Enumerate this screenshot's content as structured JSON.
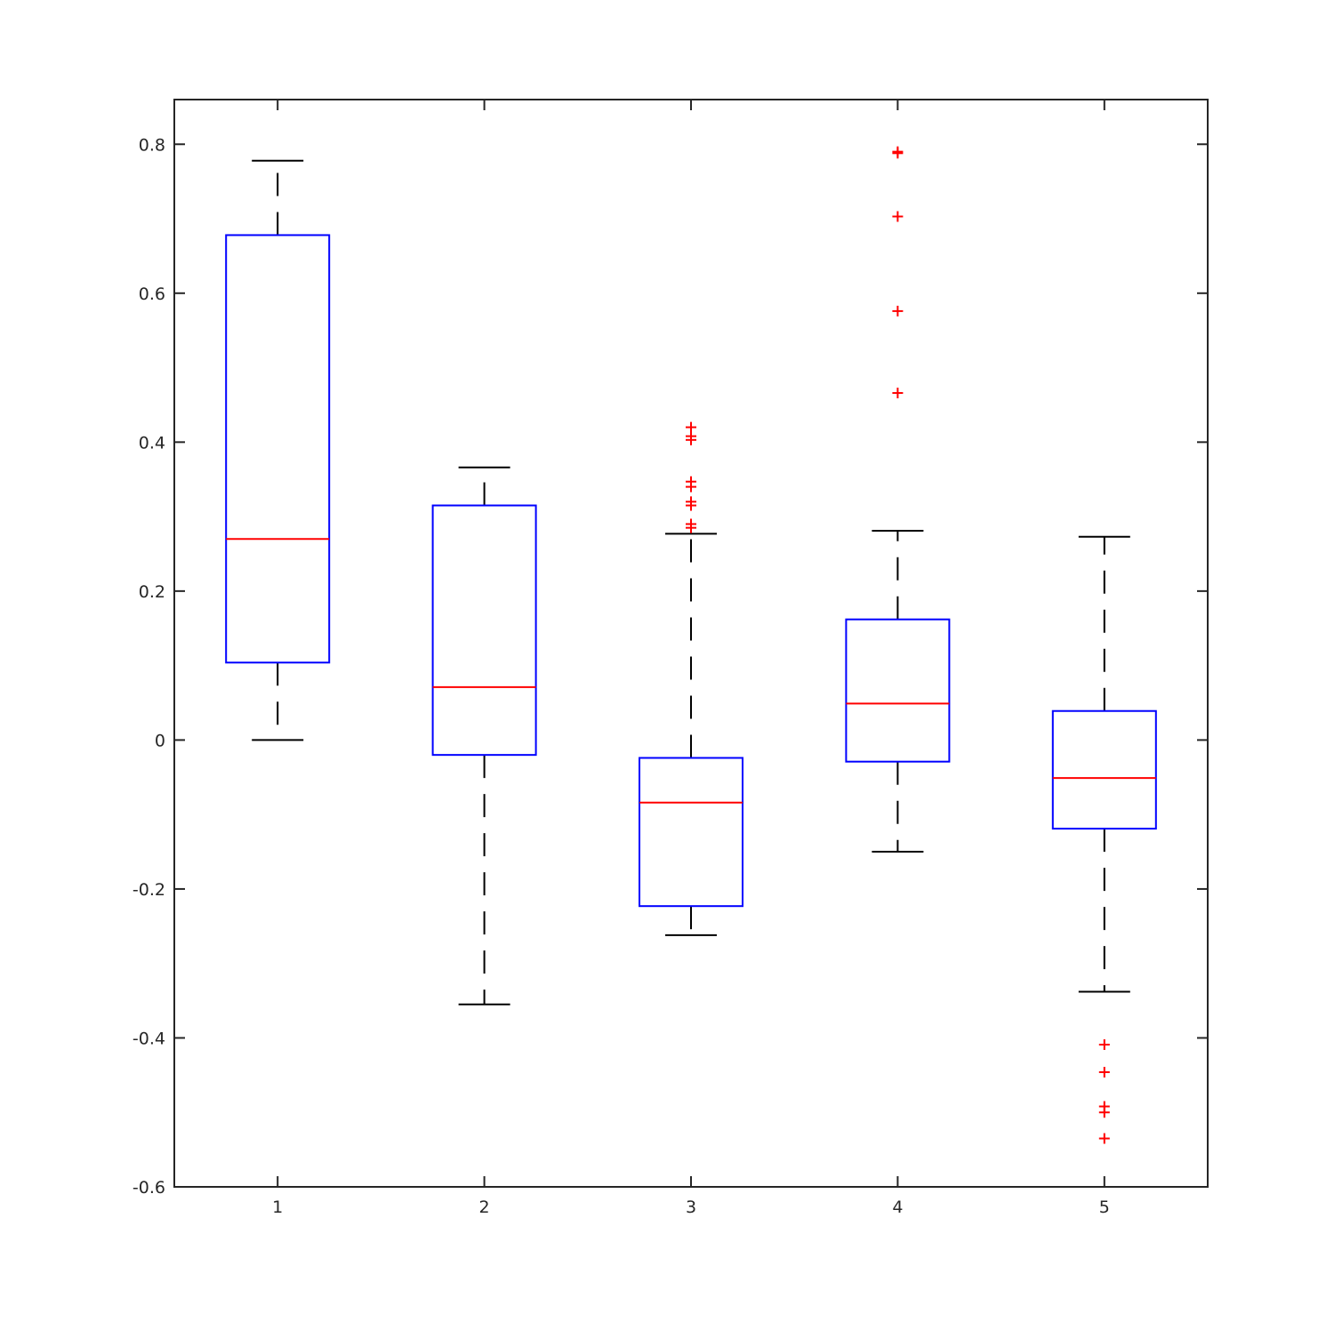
{
  "chart_data": {
    "type": "box",
    "xlabel": "",
    "ylabel": "",
    "title": "",
    "categories": [
      "1",
      "2",
      "3",
      "4",
      "5"
    ],
    "ylim": [
      -0.6,
      0.86
    ],
    "xlim": [
      0.5,
      5.5
    ],
    "yticks": [
      -0.6,
      -0.4,
      -0.2,
      0,
      0.2,
      0.4,
      0.6,
      0.8
    ],
    "ytick_labels": [
      "-0.6",
      "-0.4",
      "-0.2",
      "0",
      "0.2",
      "0.4",
      "0.6",
      "0.8"
    ],
    "grid": false,
    "colors": {
      "box": "#0000ff",
      "median": "#ff0000",
      "whisker": "#000000",
      "outlier": "#ff0000",
      "axes": "#262626"
    },
    "boxes": [
      {
        "label": "1",
        "whisker_low": 0.0,
        "q1": 0.104,
        "median": 0.27,
        "q3": 0.678,
        "whisker_high": 0.778,
        "outliers": []
      },
      {
        "label": "2",
        "whisker_low": -0.355,
        "q1": -0.02,
        "median": 0.071,
        "q3": 0.315,
        "whisker_high": 0.366,
        "outliers": []
      },
      {
        "label": "3",
        "whisker_low": -0.262,
        "q1": -0.223,
        "median": -0.084,
        "q3": -0.024,
        "whisker_high": 0.277,
        "outliers": [
          0.285,
          0.29,
          0.315,
          0.32,
          0.34,
          0.347,
          0.403,
          0.408,
          0.42
        ]
      },
      {
        "label": "4",
        "whisker_low": -0.15,
        "q1": -0.029,
        "median": 0.049,
        "q3": 0.162,
        "whisker_high": 0.281,
        "outliers": [
          0.466,
          0.576,
          0.703,
          0.788,
          0.79
        ]
      },
      {
        "label": "5",
        "whisker_low": -0.338,
        "q1": -0.119,
        "median": -0.051,
        "q3": 0.039,
        "whisker_high": 0.273,
        "outliers": [
          -0.409,
          -0.446,
          -0.492,
          -0.5,
          -0.535
        ]
      }
    ]
  }
}
